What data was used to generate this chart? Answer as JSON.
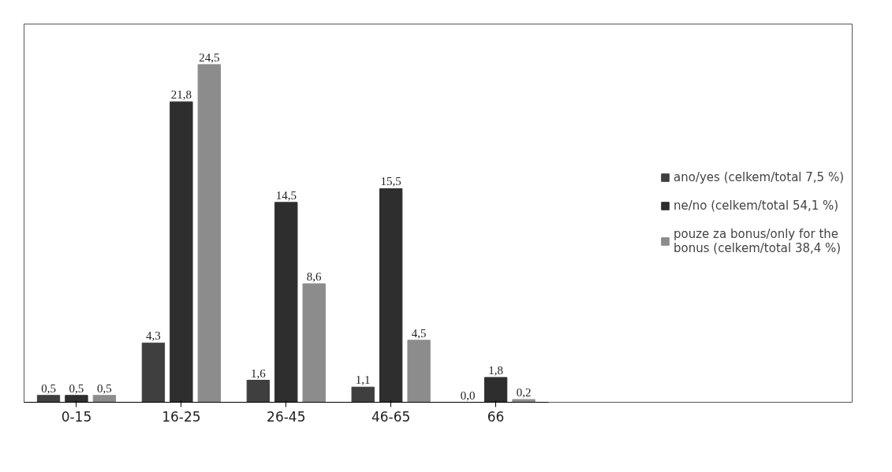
{
  "chart_data": {
    "type": "bar",
    "categories": [
      "0-15",
      "16-25",
      "26-45",
      "46-65",
      "66"
    ],
    "series": [
      {
        "name": "ano/yes (celkem/total 7,5 %)",
        "color": "#3f3f3f",
        "values": [
          0.5,
          4.3,
          1.6,
          1.1,
          0.0
        ],
        "value_labels": [
          "0,5",
          "4,3",
          "1,6",
          "1,1",
          "0,0"
        ]
      },
      {
        "name": "ne/no (celkem/total 54,1 %)",
        "color": "#2e2e2e",
        "values": [
          0.5,
          21.8,
          14.5,
          15.5,
          1.8
        ],
        "value_labels": [
          "0,5",
          "21,8",
          "14,5",
          "15,5",
          "1,8"
        ]
      },
      {
        "name": "pouze za bonus/only for the bonus (celkem/total 38,4 %)",
        "color": "#8c8c8c",
        "values": [
          0.5,
          24.5,
          8.6,
          4.5,
          0.2
        ],
        "value_labels": [
          "0,5",
          "24,5",
          "8,6",
          "4,5",
          "0,2"
        ]
      }
    ],
    "grid": false,
    "legend": "right"
  }
}
